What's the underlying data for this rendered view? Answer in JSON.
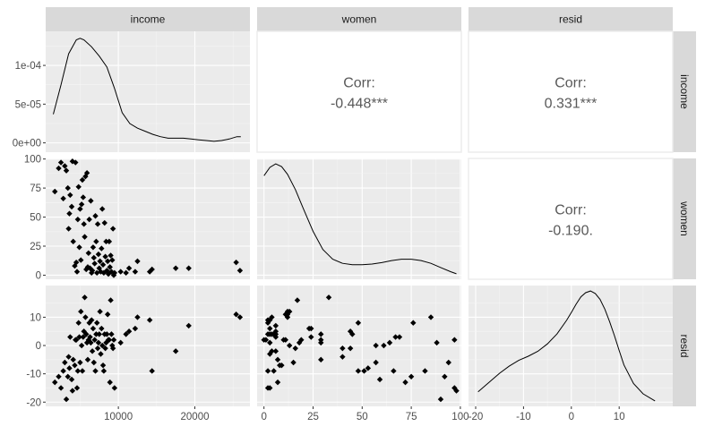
{
  "variables": [
    "income",
    "women",
    "resid"
  ],
  "chart_data": {
    "type": "scatter",
    "layout": "pairs-matrix",
    "variables": [
      "income",
      "women",
      "resid"
    ],
    "axis_ranges": {
      "income": [
        500,
        27200
      ],
      "women": [
        -3.5,
        100.5
      ],
      "resid": [
        -21.5,
        21.2
      ]
    },
    "x_ticks": {
      "income": [
        {
          "v": 10000,
          "label": "10000"
        },
        {
          "v": 20000,
          "label": "20000"
        }
      ],
      "women": [
        {
          "v": 0,
          "label": "0"
        },
        {
          "v": 25,
          "label": "25"
        },
        {
          "v": 50,
          "label": "50"
        },
        {
          "v": 75,
          "label": "75"
        },
        {
          "v": 100,
          "label": "100"
        }
      ],
      "resid": [
        {
          "v": -20,
          "label": "-20"
        },
        {
          "v": -10,
          "label": "-10"
        },
        {
          "v": 0,
          "label": "0"
        },
        {
          "v": 10,
          "label": "10"
        }
      ]
    },
    "y_ticks_rows": [
      {
        "range": [
          -1.2e-05,
          0.000144
        ],
        "ticks": [
          {
            "v": 0,
            "label": "0e+00"
          },
          {
            "v": 5e-05,
            "label": "5e-05"
          },
          {
            "v": 0.0001,
            "label": "1e-04"
          }
        ]
      },
      {
        "range": [
          -3.5,
          100.5
        ],
        "ticks": [
          {
            "v": 0,
            "label": "0"
          },
          {
            "v": 25,
            "label": "25"
          },
          {
            "v": 50,
            "label": "50"
          },
          {
            "v": 75,
            "label": "75"
          },
          {
            "v": 100,
            "label": "100"
          }
        ]
      },
      {
        "range": [
          -21.5,
          21.2
        ],
        "ticks": [
          {
            "v": -20,
            "label": "-20"
          },
          {
            "v": -10,
            "label": "-10"
          },
          {
            "v": 0,
            "label": "0"
          },
          {
            "v": 10,
            "label": "10"
          }
        ]
      }
    ],
    "correlations": [
      {
        "row": "income",
        "col": "women",
        "label": "Corr:",
        "value": "-0.448***"
      },
      {
        "row": "income",
        "col": "resid",
        "label": "Corr:",
        "value": "0.331***"
      },
      {
        "row": "women",
        "col": "resid",
        "label": "Corr:",
        "value": "-0.190."
      }
    ],
    "density": {
      "income": {
        "x": [
          1500,
          2500,
          3500,
          4500,
          5000,
          5500,
          6500,
          7500,
          8500,
          9500,
          10500,
          11500,
          12500,
          13500,
          14500,
          15500,
          16500,
          17500,
          18500,
          19500,
          20500,
          21500,
          22500,
          23500,
          24500,
          25500,
          26000
        ],
        "y": [
          3.7e-05,
          7.5e-05,
          0.000115,
          0.000133,
          0.000135,
          0.000133,
          0.000124,
          0.000112,
          9.8e-05,
          7e-05,
          3.9e-05,
          2.5e-05,
          1.9e-05,
          1.5e-05,
          1.1e-05,
          8e-06,
          6e-06,
          6e-06,
          6e-06,
          5e-06,
          4e-06,
          3e-06,
          2e-06,
          3e-06,
          5e-06,
          8e-06,
          8e-06
        ]
      },
      "women": {
        "x": [
          0,
          3,
          6,
          9,
          12,
          16,
          20,
          25,
          30,
          35,
          40,
          45,
          50,
          55,
          60,
          65,
          70,
          75,
          80,
          85,
          90,
          95,
          98
        ],
        "y": [
          0.0176,
          0.0188,
          0.0193,
          0.0189,
          0.0178,
          0.0156,
          0.0129,
          0.0096,
          0.007,
          0.0056,
          0.005,
          0.0048,
          0.0048,
          0.0049,
          0.0051,
          0.0054,
          0.0056,
          0.0056,
          0.0054,
          0.005,
          0.0044,
          0.0038,
          0.0035
        ]
      },
      "resid": {
        "x": [
          -19.5,
          -17,
          -15,
          -13,
          -11,
          -9,
          -7,
          -5,
          -3,
          -1,
          0,
          1,
          2,
          3,
          4,
          5,
          6,
          7,
          8,
          9,
          10,
          11,
          13,
          15,
          17.5
        ],
        "y": [
          0.004,
          0.0065,
          0.0085,
          0.0102,
          0.0116,
          0.0126,
          0.0138,
          0.0156,
          0.018,
          0.0213,
          0.0232,
          0.0252,
          0.027,
          0.028,
          0.0284,
          0.0278,
          0.0264,
          0.024,
          0.021,
          0.0176,
          0.014,
          0.0105,
          0.006,
          0.0035,
          0.0018
        ]
      }
    },
    "points": [
      {
        "income": 1700,
        "women": 72,
        "resid": -13
      },
      {
        "income": 2200,
        "women": 92,
        "resid": -11
      },
      {
        "income": 2500,
        "women": 97,
        "resid": -15
      },
      {
        "income": 2800,
        "women": 66,
        "resid": -9
      },
      {
        "income": 3000,
        "women": 94,
        "resid": -6
      },
      {
        "income": 3200,
        "women": 90,
        "resid": -19
      },
      {
        "income": 3400,
        "women": 75,
        "resid": -11
      },
      {
        "income": 3500,
        "women": 40,
        "resid": -4
      },
      {
        "income": 3600,
        "women": 53,
        "resid": -8
      },
      {
        "income": 3700,
        "women": 69,
        "resid": 3
      },
      {
        "income": 3900,
        "women": 59,
        "resid": -12
      },
      {
        "income": 4000,
        "women": 98,
        "resid": -16
      },
      {
        "income": 4100,
        "women": 29,
        "resid": -5
      },
      {
        "income": 4300,
        "women": 8,
        "resid": -7
      },
      {
        "income": 4400,
        "women": 97,
        "resid": 2
      },
      {
        "income": 4500,
        "women": 11,
        "resid": 2
      },
      {
        "income": 4600,
        "women": 3,
        "resid": -15
      },
      {
        "income": 4700,
        "women": 48,
        "resid": -9
      },
      {
        "income": 4800,
        "women": 76,
        "resid": 8
      },
      {
        "income": 4900,
        "women": 24,
        "resid": 3
      },
      {
        "income": 5000,
        "women": 57,
        "resid": -6
      },
      {
        "income": 5100,
        "women": 13,
        "resid": 12
      },
      {
        "income": 5200,
        "women": 61,
        "resid": 0
      },
      {
        "income": 5300,
        "women": 82,
        "resid": -9
      },
      {
        "income": 5400,
        "women": 67,
        "resid": 3
      },
      {
        "income": 5500,
        "women": 44,
        "resid": 5
      },
      {
        "income": 5600,
        "women": 33,
        "resid": 17
      },
      {
        "income": 5700,
        "women": 85,
        "resid": 10
      },
      {
        "income": 5800,
        "women": 5,
        "resid": 4
      },
      {
        "income": 5900,
        "women": 88,
        "resid": 1
      },
      {
        "income": 6000,
        "women": 7,
        "resid": -5
      },
      {
        "income": 6100,
        "women": 19,
        "resid": 2
      },
      {
        "income": 6200,
        "women": 48,
        "resid": 8
      },
      {
        "income": 6300,
        "women": 6,
        "resid": 3
      },
      {
        "income": 6400,
        "women": 64,
        "resid": 1
      },
      {
        "income": 6500,
        "women": 2,
        "resid": 9
      },
      {
        "income": 6600,
        "women": 4,
        "resid": -2
      },
      {
        "income": 6700,
        "women": 24,
        "resid": 6
      },
      {
        "income": 6800,
        "women": 15,
        "resid": -6
      },
      {
        "income": 6900,
        "women": 10,
        "resid": 2
      },
      {
        "income": 7000,
        "women": 51,
        "resid": -9
      },
      {
        "income": 7100,
        "women": 29,
        "resid": 4
      },
      {
        "income": 7200,
        "women": 2,
        "resid": 8
      },
      {
        "income": 7300,
        "women": 44,
        "resid": -1
      },
      {
        "income": 7400,
        "women": 18,
        "resid": 1
      },
      {
        "income": 7500,
        "women": 6,
        "resid": 4
      },
      {
        "income": 7600,
        "women": 12,
        "resid": 12
      },
      {
        "income": 7700,
        "women": 3,
        "resid": -3
      },
      {
        "income": 7800,
        "women": 23,
        "resid": 6
      },
      {
        "income": 7900,
        "women": 57,
        "resid": 0
      },
      {
        "income": 8000,
        "women": 9,
        "resid": -7
      },
      {
        "income": 8100,
        "women": 2,
        "resid": -9
      },
      {
        "income": 8200,
        "women": 45,
        "resid": 4
      },
      {
        "income": 8300,
        "women": 16,
        "resid": -1
      },
      {
        "income": 8400,
        "women": 29,
        "resid": 1
      },
      {
        "income": 8500,
        "women": 4,
        "resid": 4
      },
      {
        "income": 8600,
        "women": 12,
        "resid": 11
      },
      {
        "income": 8700,
        "women": 1,
        "resid": 2
      },
      {
        "income": 8800,
        "women": 29,
        "resid": 2
      },
      {
        "income": 8900,
        "women": 7,
        "resid": -13
      },
      {
        "income": 9000,
        "women": 17,
        "resid": 16
      },
      {
        "income": 9100,
        "women": 3,
        "resid": 4
      },
      {
        "income": 9200,
        "women": 13,
        "resid": 0
      },
      {
        "income": 9300,
        "women": 40,
        "resid": -1
      },
      {
        "income": 9400,
        "women": 0,
        "resid": 2
      },
      {
        "income": 9500,
        "women": 2,
        "resid": -15
      },
      {
        "income": 10300,
        "women": 3,
        "resid": 1
      },
      {
        "income": 11000,
        "women": 2,
        "resid": 4
      },
      {
        "income": 11400,
        "women": 6,
        "resid": 5
      },
      {
        "income": 12200,
        "women": 3,
        "resid": 6
      },
      {
        "income": 12500,
        "women": 12,
        "resid": 10
      },
      {
        "income": 14100,
        "women": 3,
        "resid": 9
      },
      {
        "income": 14400,
        "women": 5,
        "resid": -9
      },
      {
        "income": 17500,
        "women": 6,
        "resid": -2
      },
      {
        "income": 19200,
        "women": 6,
        "resid": 7
      },
      {
        "income": 25400,
        "women": 11,
        "resid": 11
      },
      {
        "income": 25900,
        "women": 4,
        "resid": 10
      }
    ]
  }
}
